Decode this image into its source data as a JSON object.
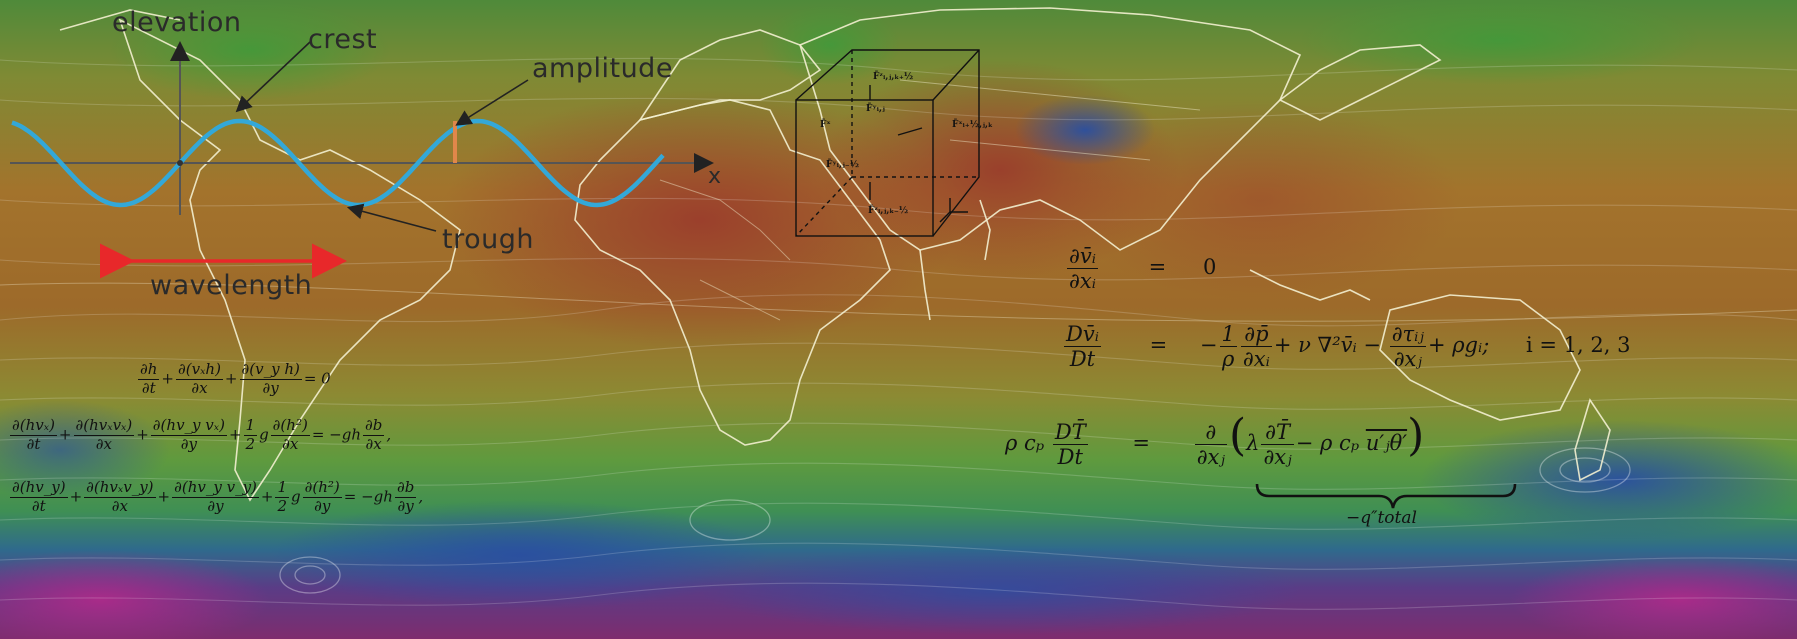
{
  "wave_labels": {
    "elevation": "elevation",
    "crest": "crest",
    "amplitude": "amplitude",
    "trough": "trough",
    "x_axis": "x",
    "wavelength": "wavelength"
  },
  "navier_stokes": {
    "continuity": {
      "lhs_num": "∂v̄ᵢ",
      "lhs_den": "∂xᵢ",
      "eq": "=",
      "rhs": "0"
    },
    "momentum": {
      "lhs_num": "Dv̄ᵢ",
      "lhs_den": "Dt",
      "eq": "=",
      "index_note": "i = 1, 2, 3"
    },
    "energy": {
      "lhs_coef": "ρ cₚ",
      "lhs_num": "DT̄",
      "lhs_den": "Dt",
      "eq": "=",
      "brace_label": "−q″total"
    }
  },
  "shallow_water": {
    "rows": 3
  },
  "cube_labels": [
    "F̄ᶻᵢ,ⱼ,ₖ₊½",
    "F̄ʸᵢ,ⱼ",
    "F̄ˣᵢ₊½,ⱼ,ₖ",
    "F̄ˣ",
    "F̄ʸᵢ,ⱼ₋½",
    "F̄ᶻᵢ,ⱼ,ₖ₋½"
  ],
  "colors": {
    "wave": "#33a8d8",
    "wavelength_arrow": "#e8282a",
    "amplitude_bar": "#e0874a",
    "coastline": "#f3efd0"
  }
}
